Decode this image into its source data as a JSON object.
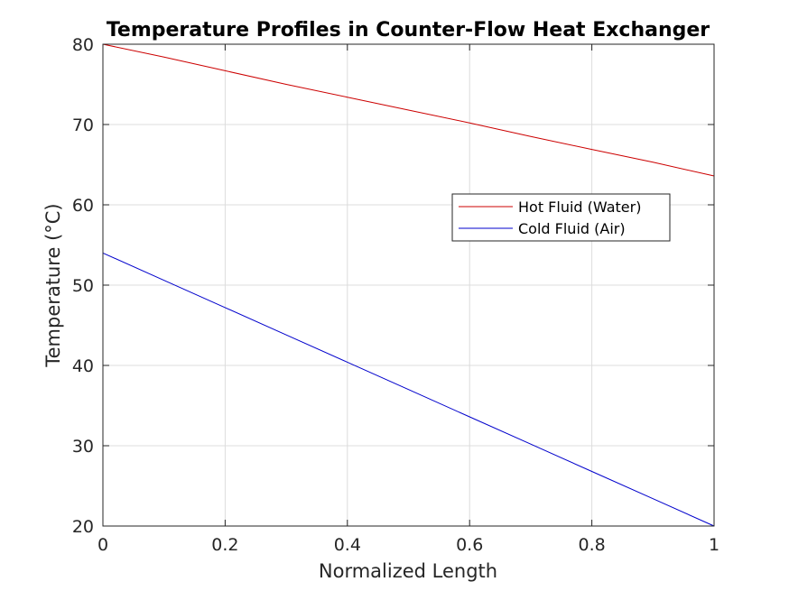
{
  "chart_data": {
    "type": "line",
    "title": "Temperature Profiles in Counter-Flow Heat Exchanger",
    "xlabel": "Normalized Length",
    "ylabel": "Temperature (°C)",
    "xlim": [
      0,
      1
    ],
    "ylim": [
      20,
      80
    ],
    "xticks": [
      0,
      0.2,
      0.4,
      0.6,
      0.8,
      1
    ],
    "yticks": [
      20,
      30,
      40,
      50,
      60,
      70,
      80
    ],
    "xtick_labels": [
      "0",
      "0.2",
      "0.4",
      "0.6",
      "0.8",
      "1"
    ],
    "ytick_labels": [
      "20",
      "30",
      "40",
      "50",
      "60",
      "70",
      "80"
    ],
    "grid": true,
    "legend_position": "right, upper-middle",
    "series": [
      {
        "name": "Hot Fluid (Water)",
        "color": "#cc0000",
        "x": [
          0,
          0.1,
          0.2,
          0.3,
          0.4,
          0.5,
          0.6,
          0.7,
          0.8,
          0.9,
          1.0
        ],
        "y": [
          80.0,
          78.4,
          76.7,
          75.0,
          73.4,
          71.8,
          70.2,
          68.5,
          66.9,
          65.3,
          63.6
        ]
      },
      {
        "name": "Cold Fluid (Air)",
        "color": "#0000cc",
        "x": [
          0,
          0.1,
          0.2,
          0.3,
          0.4,
          0.5,
          0.6,
          0.7,
          0.8,
          0.9,
          1.0
        ],
        "y": [
          54.0,
          50.6,
          47.2,
          43.8,
          40.4,
          37.0,
          33.6,
          30.2,
          26.8,
          23.4,
          20.0
        ]
      }
    ]
  }
}
